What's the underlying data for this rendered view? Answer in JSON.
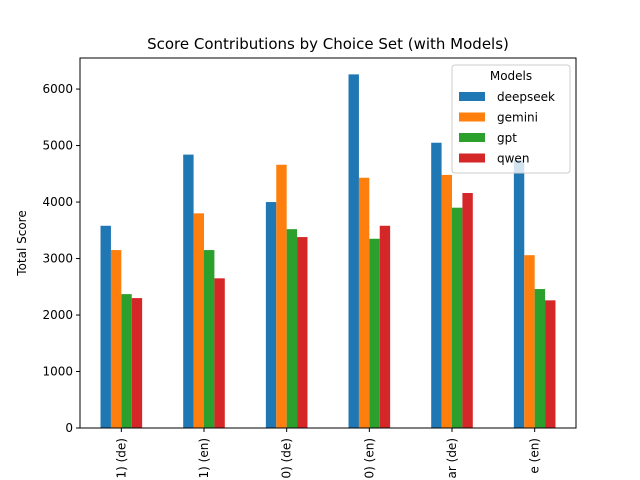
{
  "chart_data": {
    "type": "bar",
    "title": "Score Contributions by Choice Set (with Models)",
    "xlabel": "",
    "ylabel": "Total Score",
    "categories": [
      "1) (de)",
      "1) (en)",
      "0) (de)",
      "0) (en)",
      "ar (de)",
      "e (en)"
    ],
    "ylim": [
      0,
      6550
    ],
    "yticks": [
      0,
      1000,
      2000,
      3000,
      4000,
      5000,
      6000
    ],
    "grid": false,
    "legend": {
      "title": "Models",
      "placement": "top-right"
    },
    "series": [
      {
        "name": "deepseek",
        "color": "#1f77b4",
        "values": [
          3580,
          4840,
          4000,
          6260,
          5050,
          4750
        ]
      },
      {
        "name": "gemini",
        "color": "#ff7f0e",
        "values": [
          3150,
          3800,
          4660,
          4430,
          4480,
          3060
        ]
      },
      {
        "name": "gpt",
        "color": "#2ca02c",
        "values": [
          2370,
          3150,
          3520,
          3350,
          3900,
          2460
        ]
      },
      {
        "name": "qwen",
        "color": "#d62728",
        "values": [
          2300,
          2650,
          3380,
          3580,
          4160,
          2260
        ]
      }
    ]
  }
}
